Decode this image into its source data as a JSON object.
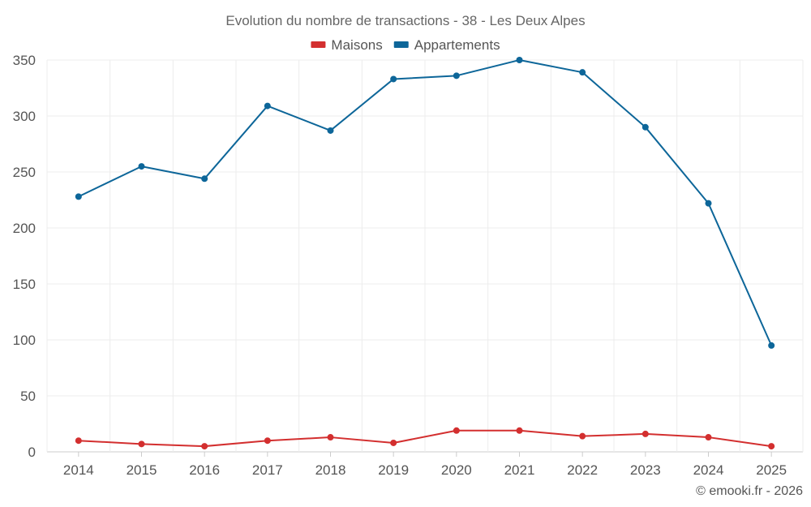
{
  "chart_data": {
    "type": "line",
    "title": "Evolution du nombre de transactions - 38 - Les Deux Alpes",
    "categories": [
      "2014",
      "2015",
      "2016",
      "2017",
      "2018",
      "2019",
      "2020",
      "2021",
      "2022",
      "2023",
      "2024",
      "2025"
    ],
    "series": [
      {
        "name": "Maisons",
        "color": "#d32f2f",
        "values": [
          10,
          7,
          5,
          10,
          13,
          8,
          19,
          19,
          14,
          16,
          13,
          5
        ]
      },
      {
        "name": "Appartements",
        "color": "#0d6699",
        "values": [
          228,
          255,
          244,
          309,
          287,
          333,
          336,
          350,
          339,
          290,
          222,
          95
        ]
      }
    ],
    "ylim": [
      0,
      350
    ],
    "yticks": [
      0,
      50,
      100,
      150,
      200,
      250,
      300,
      350
    ],
    "xlabel": "",
    "ylabel": "",
    "grid": true,
    "legend": "top-center",
    "credit": "© emooki.fr - 2026"
  }
}
